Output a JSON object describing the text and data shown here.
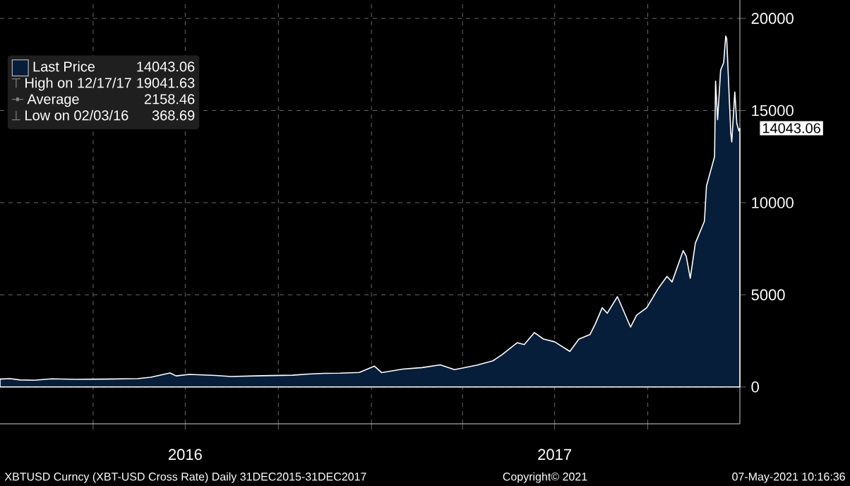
{
  "chart_data": {
    "type": "area",
    "xlim": [
      "2015-12-31",
      "2017-12-31"
    ],
    "ylim": [
      -2000,
      21000
    ],
    "yticks": [
      0,
      5000,
      10000,
      15000,
      20000
    ],
    "xticks": [
      {
        "value": "2016-04-01",
        "label": null
      },
      {
        "value": "2016-07-01",
        "label": "2016"
      },
      {
        "value": "2016-10-01",
        "label": null
      },
      {
        "value": "2017-01-01",
        "label": null
      },
      {
        "value": "2017-04-01",
        "label": null
      },
      {
        "value": "2017-07-01",
        "label": "2017"
      },
      {
        "value": "2017-10-01",
        "label": null
      }
    ],
    "grid": true,
    "legend": "top left",
    "marker": "none",
    "x": [
      "2015-12-31",
      "2016-01-10",
      "2016-01-20",
      "2016-02-03",
      "2016-02-20",
      "2016-03-15",
      "2016-04-15",
      "2016-05-15",
      "2016-05-28",
      "2016-06-16",
      "2016-06-22",
      "2016-07-05",
      "2016-07-31",
      "2016-08-15",
      "2016-09-15",
      "2016-10-15",
      "2016-10-31",
      "2016-11-15",
      "2016-12-01",
      "2016-12-20",
      "2017-01-04",
      "2017-01-11",
      "2017-02-01",
      "2017-02-20",
      "2017-03-10",
      "2017-03-24",
      "2017-04-15",
      "2017-05-01",
      "2017-05-10",
      "2017-05-25",
      "2017-06-01",
      "2017-06-11",
      "2017-06-20",
      "2017-07-01",
      "2017-07-16",
      "2017-07-25",
      "2017-08-05",
      "2017-08-10",
      "2017-08-17",
      "2017-08-22",
      "2017-09-01",
      "2017-09-05",
      "2017-09-14",
      "2017-09-20",
      "2017-09-30",
      "2017-10-12",
      "2017-10-20",
      "2017-10-25",
      "2017-11-05",
      "2017-11-08",
      "2017-11-12",
      "2017-11-17",
      "2017-11-26",
      "2017-11-28",
      "2017-12-06",
      "2017-12-07",
      "2017-12-09",
      "2017-12-12",
      "2017-12-15",
      "2017-12-17",
      "2017-12-18",
      "2017-12-22",
      "2017-12-23",
      "2017-12-26",
      "2017-12-28",
      "2017-12-30",
      "2017-12-31"
    ],
    "series": [
      {
        "name": "Last Price",
        "color": "#061e3a",
        "values": [
          430,
          450,
          380,
          368.69,
          440,
          415,
          430,
          455,
          530,
          760,
          600,
          680,
          625,
          570,
          610,
          640,
          700,
          740,
          750,
          790,
          1130,
          780,
          970,
          1050,
          1200,
          940,
          1180,
          1420,
          1750,
          2400,
          2300,
          2950,
          2600,
          2450,
          1930,
          2600,
          2850,
          3400,
          4300,
          4000,
          4900,
          4400,
          3250,
          3900,
          4300,
          5400,
          6000,
          5700,
          7400,
          7100,
          5900,
          7800,
          9000,
          10900,
          12500,
          16600,
          14500,
          17200,
          17600,
          19041.63,
          18900,
          13800,
          13300,
          16000,
          14300,
          13900,
          14043.06
        ]
      }
    ],
    "annotations": [
      "14043.06",
      "High on 12/17/17",
      "19041.63",
      "Average",
      "2158.46",
      "Low on 02/03/16",
      "368.69",
      {
        "text": "14043.06",
        "x": "2017-12-31",
        "y": 14043.06
      },
      "XBTUSD Curncy (XBT-USD Cross Rate)  Daily 31DEC2015-31DEC2017",
      "Copyright© 2021",
      "07-May-2021 10:16:36"
    ]
  }
}
